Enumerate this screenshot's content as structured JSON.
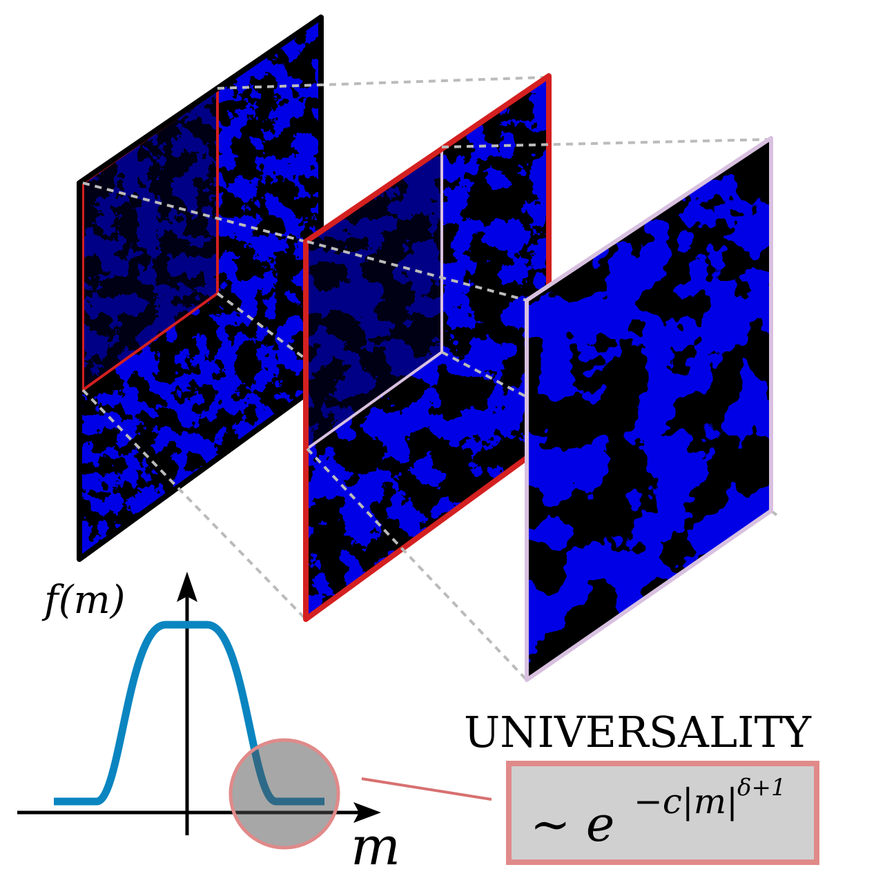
{
  "title": "UNIVERSALITY",
  "formula": {
    "prefix": "∼ e",
    "exponent": "−c|m|",
    "superexponent": "δ+1"
  },
  "axes": {
    "y_label": "f(m)",
    "x_label": "m"
  },
  "colors": {
    "spin_up": "#ffff00",
    "spin_down": "#0000e6",
    "curve": "#0a85c0",
    "panel1_border": "#000000",
    "panel2_border": "#d42020",
    "panel3_border": "#d8c0e0",
    "highlight": "#e08a8a",
    "dashed": "#bbbbbb"
  }
}
